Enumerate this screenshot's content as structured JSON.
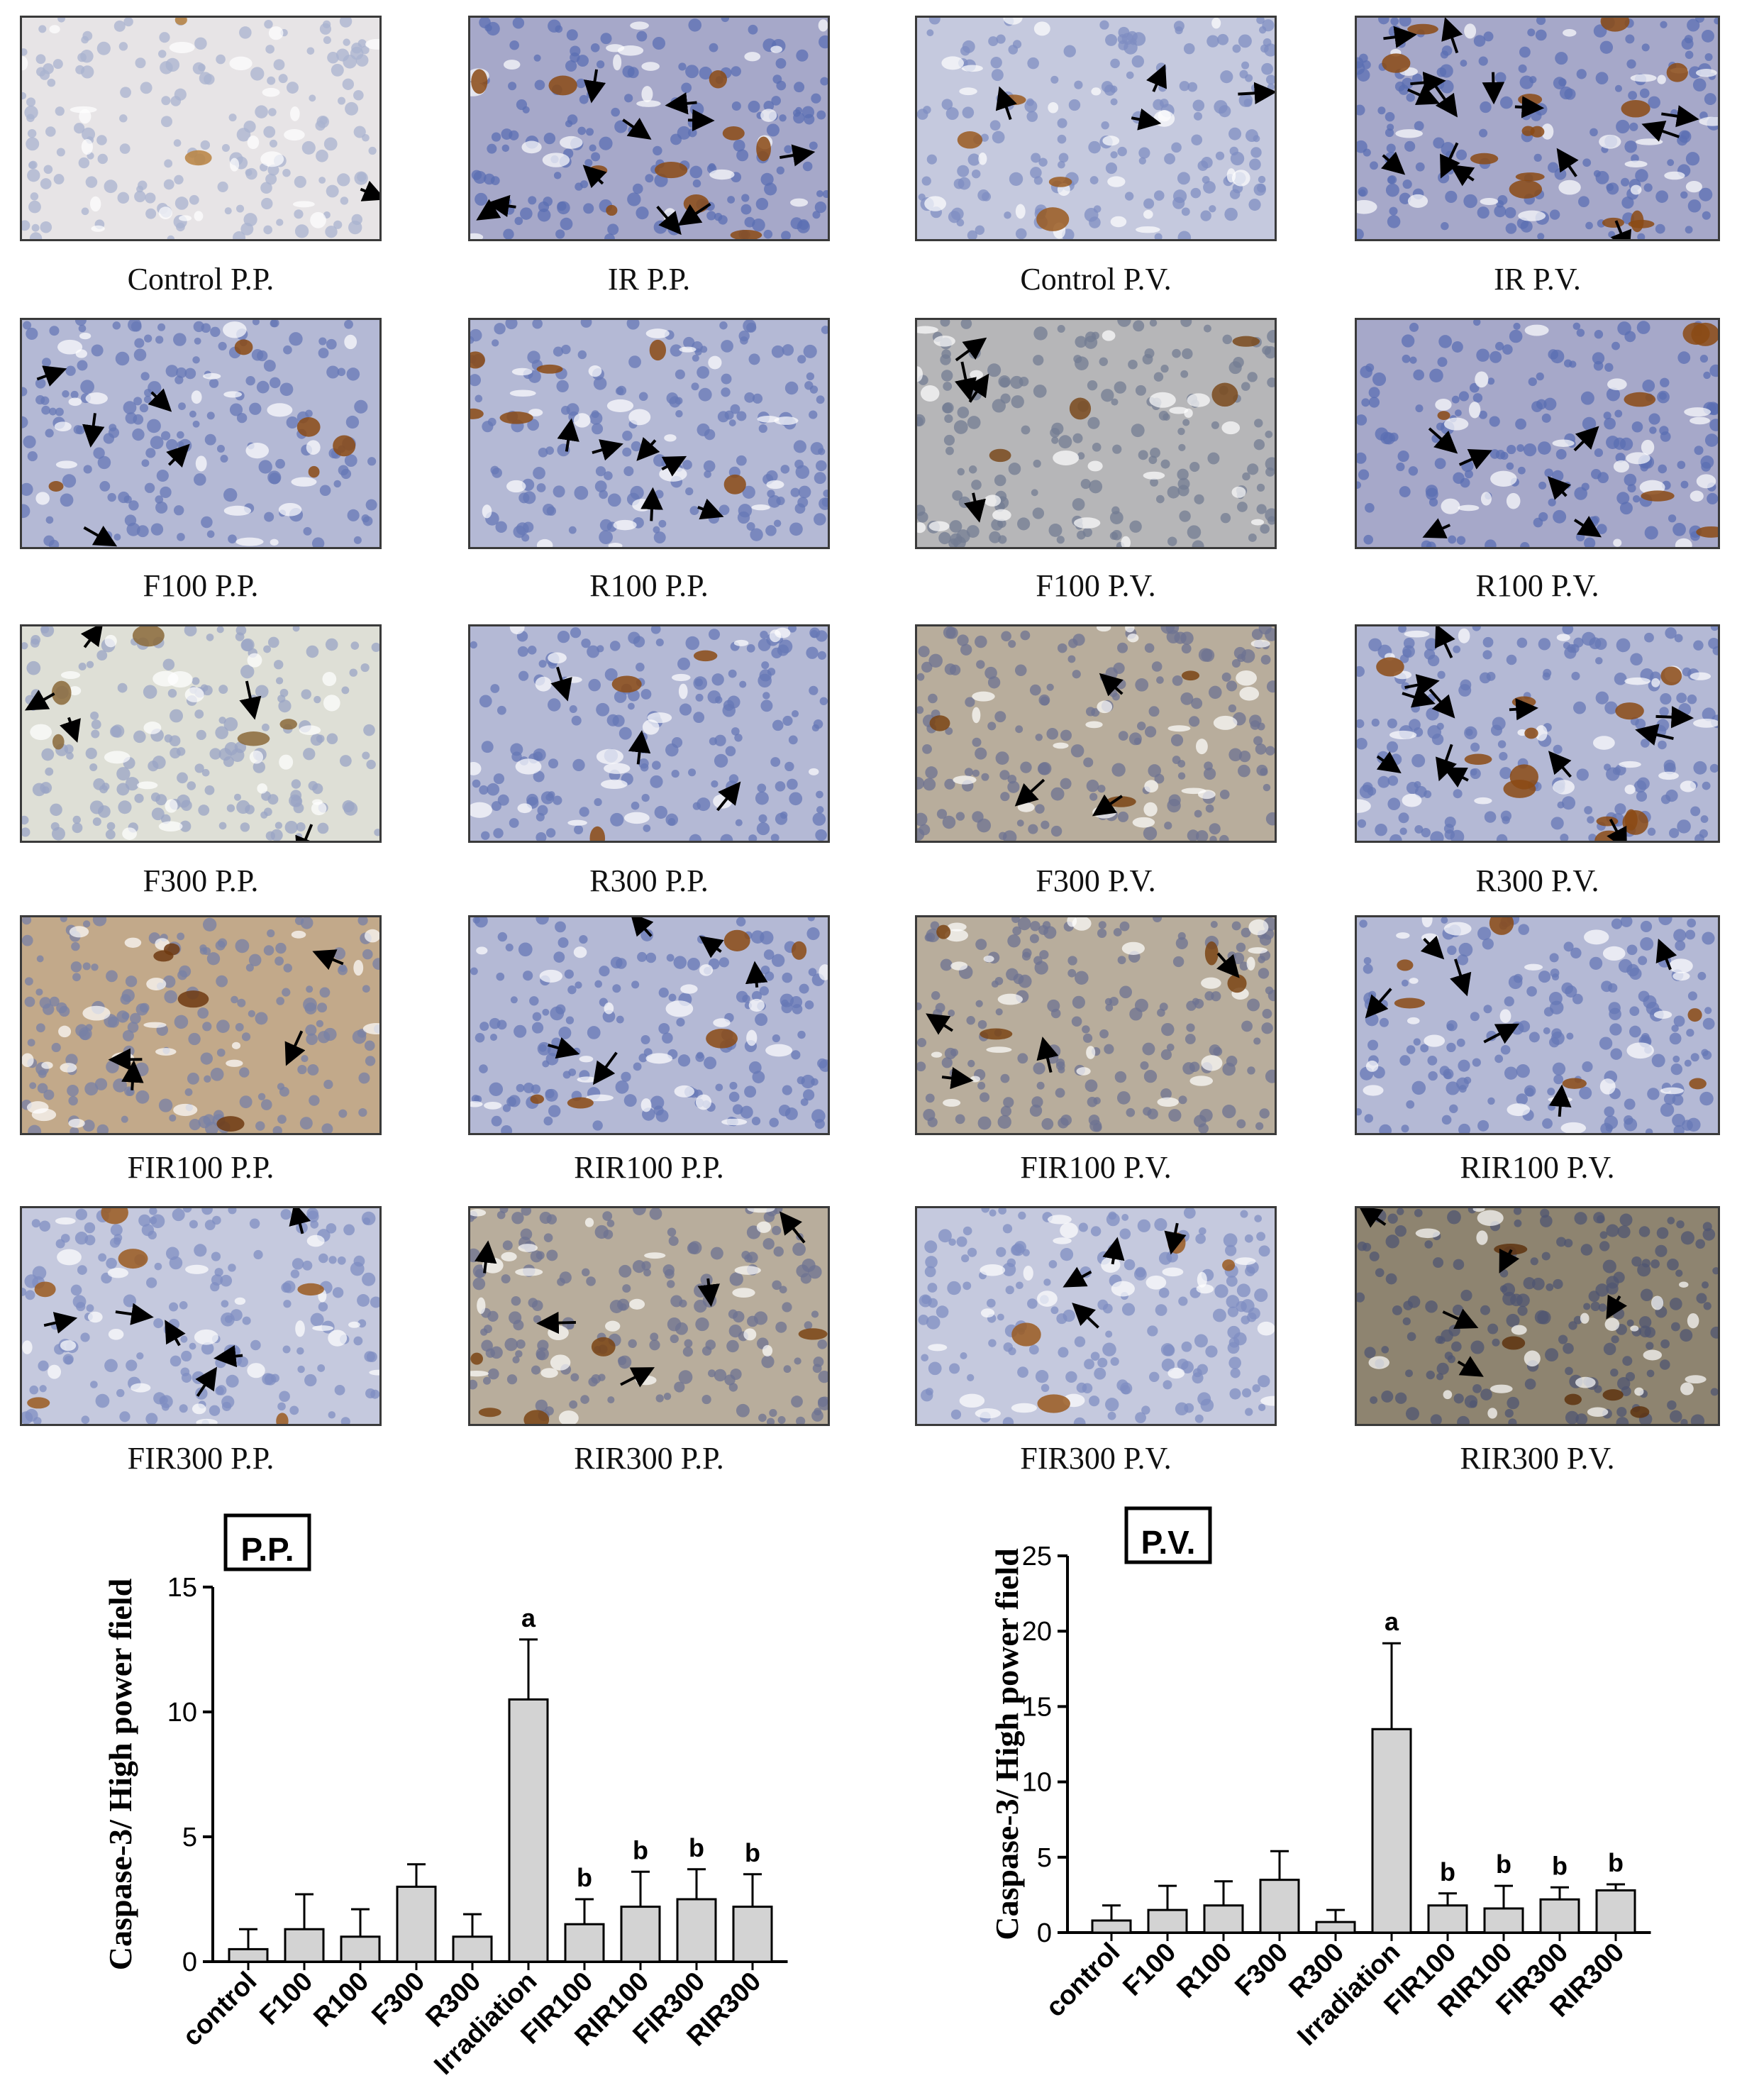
{
  "panels": [
    {
      "caption": "Control P.P.",
      "tone": "light",
      "arrows": 1
    },
    {
      "caption": "IR P.P.",
      "tone": "blue-heavy",
      "arrows": 10
    },
    {
      "caption": "Control P.V.",
      "tone": "blue-light",
      "arrows": 4
    },
    {
      "caption": "IR P.V.",
      "tone": "blue-heavy",
      "arrows": 14
    },
    {
      "caption": "F100 P.P.",
      "tone": "blue",
      "arrows": 5
    },
    {
      "caption": "R100 P.P.",
      "tone": "blue",
      "arrows": 6
    },
    {
      "caption": "F100 P.V.",
      "tone": "grey",
      "arrows": 4
    },
    {
      "caption": "R100 P.V.",
      "tone": "blue-heavy",
      "arrows": 6
    },
    {
      "caption": "F300 P.P.",
      "tone": "pale",
      "arrows": 5
    },
    {
      "caption": "R300 P.P.",
      "tone": "blue",
      "arrows": 3
    },
    {
      "caption": "F300 P.V.",
      "tone": "brown-grey",
      "arrows": 3
    },
    {
      "caption": "R300 P.V.",
      "tone": "blue",
      "arrows": 12
    },
    {
      "caption": "FIR100 P.P.",
      "tone": "brown",
      "arrows": 4
    },
    {
      "caption": "RIR100 P.P.",
      "tone": "blue",
      "arrows": 5
    },
    {
      "caption": "FIR100 P.V.",
      "tone": "brown-grey",
      "arrows": 4
    },
    {
      "caption": "RIR100 P.V.",
      "tone": "blue",
      "arrows": 6
    },
    {
      "caption": "FIR300 P.P.",
      "tone": "blue-light",
      "arrows": 6
    },
    {
      "caption": "RIR300 P.P.",
      "tone": "brown-grey",
      "arrows": 5
    },
    {
      "caption": "FIR300 P.V.",
      "tone": "blue-light",
      "arrows": 4
    },
    {
      "caption": "RIR300 P.V.",
      "tone": "brown-dark",
      "arrows": 5
    }
  ],
  "colors": {
    "bar_fill": "#d3d3d3",
    "axis": "#000000",
    "stain_brown": "#8b4a14",
    "hematoxylin_blue": "#5b6fb3"
  },
  "chart_data": [
    {
      "type": "bar",
      "title": "P.P.",
      "ylabel": "Caspase-3/ High power field",
      "categories": [
        "control",
        "F100",
        "R100",
        "F300",
        "R300",
        "Irradiation",
        "FIR100",
        "RIR100",
        "FIR300",
        "RIR300"
      ],
      "values": [
        0.5,
        1.3,
        1.0,
        3.0,
        1.0,
        10.5,
        1.5,
        2.2,
        2.5,
        2.2
      ],
      "error": [
        0.8,
        1.4,
        1.1,
        0.9,
        0.9,
        2.4,
        1.0,
        1.4,
        1.2,
        1.3
      ],
      "significance": [
        "",
        "",
        "",
        "",
        "",
        "a",
        "b",
        "b",
        "b",
        "b"
      ],
      "ylim": [
        0,
        15
      ],
      "yticks": [
        0,
        5,
        10,
        15
      ]
    },
    {
      "type": "bar",
      "title": "P.V.",
      "ylabel": "Caspase-3/ High power field",
      "categories": [
        "control",
        "F100",
        "R100",
        "F300",
        "R300",
        "Irradiation",
        "FIR100",
        "RIR100",
        "FIR300",
        "RIR300"
      ],
      "values": [
        0.8,
        1.5,
        1.8,
        3.5,
        0.7,
        13.5,
        1.8,
        1.6,
        2.2,
        2.8
      ],
      "error": [
        1.0,
        1.6,
        1.6,
        1.9,
        0.8,
        5.7,
        0.8,
        1.5,
        0.8,
        0.4
      ],
      "significance": [
        "",
        "",
        "",
        "",
        "",
        "a",
        "b",
        "b",
        "b",
        "b"
      ],
      "ylim": [
        0,
        25
      ],
      "yticks": [
        0,
        5,
        10,
        15,
        20,
        25
      ]
    }
  ]
}
